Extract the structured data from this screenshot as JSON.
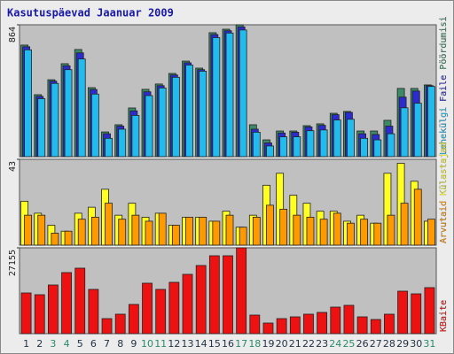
{
  "chart_data": {
    "type": "bar",
    "title": "Kasutuspäevad Jaanuar 2009",
    "categories": [
      "1",
      "2",
      "3",
      "4",
      "5",
      "6",
      "7",
      "8",
      "9",
      "10",
      "11",
      "12",
      "13",
      "14",
      "15",
      "16",
      "17",
      "18",
      "19",
      "20",
      "21",
      "22",
      "23",
      "24",
      "25",
      "26",
      "27",
      "28",
      "29",
      "30",
      "31"
    ],
    "category_label_colors": [
      "#223344",
      "#223344",
      "#2a8a6a",
      "#2a8a6a",
      "#223344",
      "#223344",
      "#223344",
      "#223344",
      "#223344",
      "#2a8a6a",
      "#2a8a6a",
      "#223344",
      "#223344",
      "#223344",
      "#223344",
      "#223344",
      "#2a8a6a",
      "#2a8a6a",
      "#223344",
      "#223344",
      "#223344",
      "#223344",
      "#223344",
      "#2a8a6a",
      "#2a8a6a",
      "#223344",
      "#223344",
      "#223344",
      "#223344",
      "#223344",
      "#2a8a6a"
    ],
    "panels": [
      {
        "ylim": [
          0,
          864
        ],
        "yticks": [
          864
        ],
        "series": [
          {
            "name": "Pöördumisi",
            "color": "#3d8a68",
            "values": [
              731,
              406,
              504,
              609,
              702,
              452,
              162,
              209,
              319,
              441,
              476,
              545,
              626,
              580,
              812,
              835,
              864,
              209,
              110,
              168,
              168,
              203,
              215,
              284,
              296,
              168,
              168,
              238,
              447,
              447,
              470
            ]
          },
          {
            "name": "Faile",
            "color": "#2b2bd0",
            "values": [
              720,
              395,
              495,
              595,
              680,
              440,
              150,
              200,
              300,
              425,
              465,
              535,
              615,
              570,
              800,
              825,
              850,
              180,
              90,
              155,
              160,
              195,
              205,
              275,
              290,
              150,
              145,
              200,
              390,
              430,
              465
            ]
          },
          {
            "name": "Lehekülgi",
            "color": "#22bbee",
            "values": [
              700,
              380,
              480,
              570,
              640,
              410,
              120,
              180,
              270,
              400,
              450,
              520,
              600,
              560,
              780,
              810,
              830,
              160,
              70,
              130,
              130,
              170,
              175,
              240,
              245,
              120,
              110,
              150,
              320,
              350,
              460
            ]
          }
        ]
      },
      {
        "ylim": [
          0,
          43
        ],
        "yticks": [
          43
        ],
        "series": [
          {
            "name": "Külastajad",
            "color": "#ffff22",
            "values": [
              22,
              16,
              10,
              7,
              16,
              19,
              28,
              15,
              21,
              14,
              16,
              10,
              14,
              14,
              12,
              17,
              9,
              15,
              30,
              36,
              25,
              21,
              17,
              17,
              12,
              15,
              11,
              36,
              41,
              32,
              12
            ]
          },
          {
            "name": "Arvutaid",
            "color": "#ff9900",
            "values": [
              15,
              15,
              6,
              7,
              13,
              14,
              21,
              13,
              15,
              12,
              16,
              10,
              14,
              14,
              12,
              15,
              9,
              14,
              20,
              18,
              15,
              14,
              13,
              16,
              11,
              13,
              11,
              15,
              21,
              28,
              13
            ]
          }
        ]
      },
      {
        "ylim": [
          0,
          27155
        ],
        "yticks": [
          27155
        ],
        "series": [
          {
            "name": "KBaite",
            "color": "#ee1111",
            "values": [
              12877,
              12317,
              15397,
              19318,
              20716,
              14000,
              4760,
              6160,
              9240,
              15960,
              14000,
              16240,
              18760,
              21560,
              24640,
              24640,
              27155,
              5880,
              3360,
              4760,
              5320,
              6160,
              6720,
              8400,
              8960,
              5320,
              4480,
              6160,
              13440,
              12600,
              14560
            ]
          }
        ]
      }
    ]
  }
}
